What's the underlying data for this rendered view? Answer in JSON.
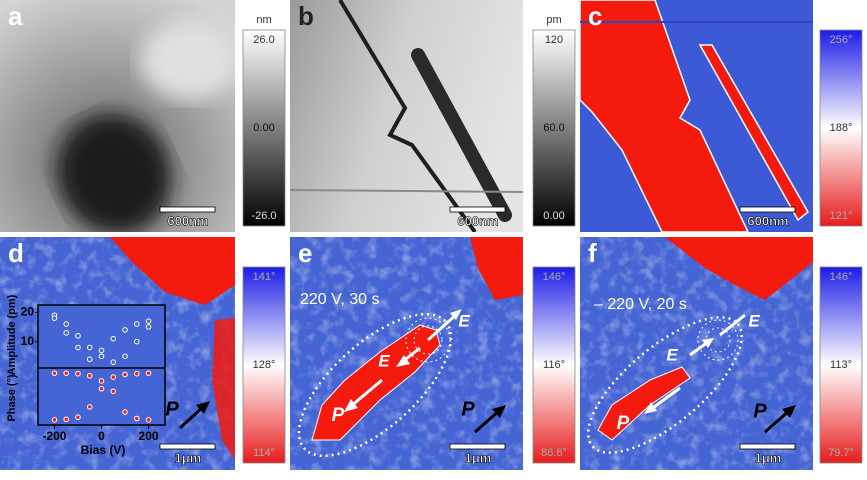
{
  "panels": [
    {
      "label": "a",
      "scale_bar": "600nm",
      "colorbar": {
        "unit": "nm",
        "ticks": [
          "26.0",
          "0.00",
          "-26.0"
        ]
      },
      "annotations": []
    },
    {
      "label": "b",
      "scale_bar": "600nm",
      "colorbar": {
        "unit": "pm",
        "ticks": [
          "120",
          "60.0",
          "0.00"
        ]
      },
      "annotations": []
    },
    {
      "label": "c",
      "scale_bar": "600nm",
      "colorbar": {
        "ticks": [
          "256°",
          "188°",
          "121°"
        ]
      },
      "annotations": []
    },
    {
      "label": "d",
      "scale_bar": "1μm",
      "colorbar": {
        "ticks": [
          "141°",
          "128°",
          "114°"
        ]
      },
      "annotations": [
        "P"
      ]
    },
    {
      "label": "e",
      "scale_bar": "1μm",
      "colorbar": {
        "ticks": [
          "146°",
          "116°",
          "86.6°"
        ]
      },
      "annotations": [
        "220 V, 30 s",
        "E",
        "E",
        "P",
        "P"
      ]
    },
    {
      "label": "f",
      "scale_bar": "1μm",
      "colorbar": {
        "ticks": [
          "146°",
          "113°",
          "79.7°"
        ]
      },
      "annotations": [
        "– 220 V, 20 s",
        "E",
        "E",
        "P",
        "P"
      ]
    }
  ],
  "inset": {
    "x_label": "Bias (V)",
    "amplitude_label": "Amplitude (pm)",
    "phase_label": "Phase (°)",
    "xlim": [
      -270,
      270
    ],
    "xticks": [
      -200,
      0,
      200
    ],
    "amplitude_ylim": [
      1,
      22.5
    ],
    "amplitude_ticks": [
      10,
      20
    ],
    "phase_ylim": [
      -110,
      110
    ],
    "x": [
      -200,
      -150,
      -100,
      -50,
      0,
      50,
      100,
      150,
      200
    ],
    "amplitude_loops": [
      [
        19,
        16,
        12,
        8,
        5,
        3,
        5,
        10,
        15
      ],
      [
        18,
        13,
        8,
        4,
        7,
        11,
        14,
        16,
        17
      ]
    ],
    "phase_loops": [
      [
        90,
        90,
        88,
        80,
        60,
        20,
        -60,
        -85,
        -90
      ],
      [
        -90,
        -88,
        -80,
        -40,
        30,
        75,
        85,
        88,
        90
      ]
    ]
  }
}
